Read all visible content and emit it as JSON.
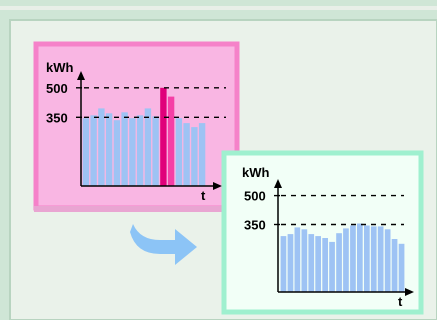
{
  "chart_data": [
    {
      "type": "bar",
      "ylabel": "kWh",
      "xlabel": "t",
      "yticks": [
        500,
        350
      ],
      "ylim": [
        0,
        560
      ],
      "values": [
        345,
        360,
        395,
        370,
        335,
        375,
        345,
        360,
        395,
        355,
        500,
        455,
        345,
        320,
        300,
        320
      ],
      "highlight_indices": [
        10,
        11
      ],
      "colors": {
        "bar": "#9ec3f4",
        "highlight_peak": "#e0007a",
        "highlight": "#f53fa6",
        "panel_bg": "#f9b6e3",
        "panel_border": "#f582c9"
      }
    },
    {
      "type": "bar",
      "ylabel": "kWh",
      "xlabel": "t",
      "yticks": [
        500,
        350
      ],
      "ylim": [
        0,
        560
      ],
      "values": [
        290,
        300,
        335,
        325,
        300,
        290,
        280,
        260,
        305,
        330,
        345,
        355,
        345,
        340,
        340,
        325,
        275,
        250
      ],
      "colors": {
        "bar": "#9ec3f4",
        "panel_bg": "#f2fff7",
        "panel_border": "#9ff0cf"
      }
    }
  ],
  "colors": {
    "page_bg": "#cfe6d6",
    "inner_bg": "#eaf2ea",
    "frame": "#b8d4c0",
    "arrow": "#8cc4f6"
  }
}
